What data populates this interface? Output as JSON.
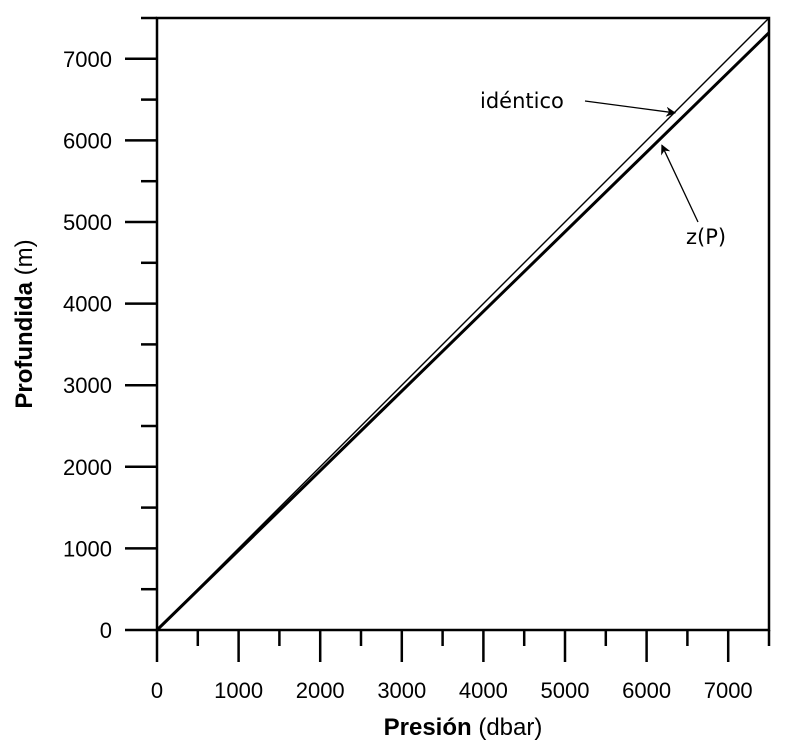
{
  "chart_data": {
    "type": "line",
    "title": "",
    "xlabel_bold": "Presión",
    "xlabel_unit": " (dbar)",
    "ylabel_bold": "Profundida",
    "ylabel_unit": " (m)",
    "xlim": [
      0,
      7500
    ],
    "ylim": [
      0,
      7500
    ],
    "x_ticks": [
      0,
      1000,
      2000,
      3000,
      4000,
      5000,
      6000,
      7000
    ],
    "y_ticks": [
      0,
      1000,
      2000,
      3000,
      4000,
      5000,
      6000,
      7000
    ],
    "x_tick_labels": [
      "0",
      "1000",
      "2000",
      "3000",
      "4000",
      "5000",
      "6000",
      "7000"
    ],
    "y_tick_labels": [
      "0",
      "1000",
      "2000",
      "3000",
      "4000",
      "5000",
      "6000",
      "7000"
    ],
    "grid": false,
    "series": [
      {
        "name": "idéntico",
        "x": [
          0,
          7500
        ],
        "y": [
          0,
          7500
        ]
      },
      {
        "name": "z(P)",
        "x": [
          0,
          7500
        ],
        "y": [
          0,
          7320
        ]
      }
    ],
    "annotations": [
      {
        "text": "idéntico",
        "points_to_series": 0,
        "at_x": 6300
      },
      {
        "text": "z(P)",
        "points_to_series": 1,
        "at_x": 6150
      }
    ]
  }
}
